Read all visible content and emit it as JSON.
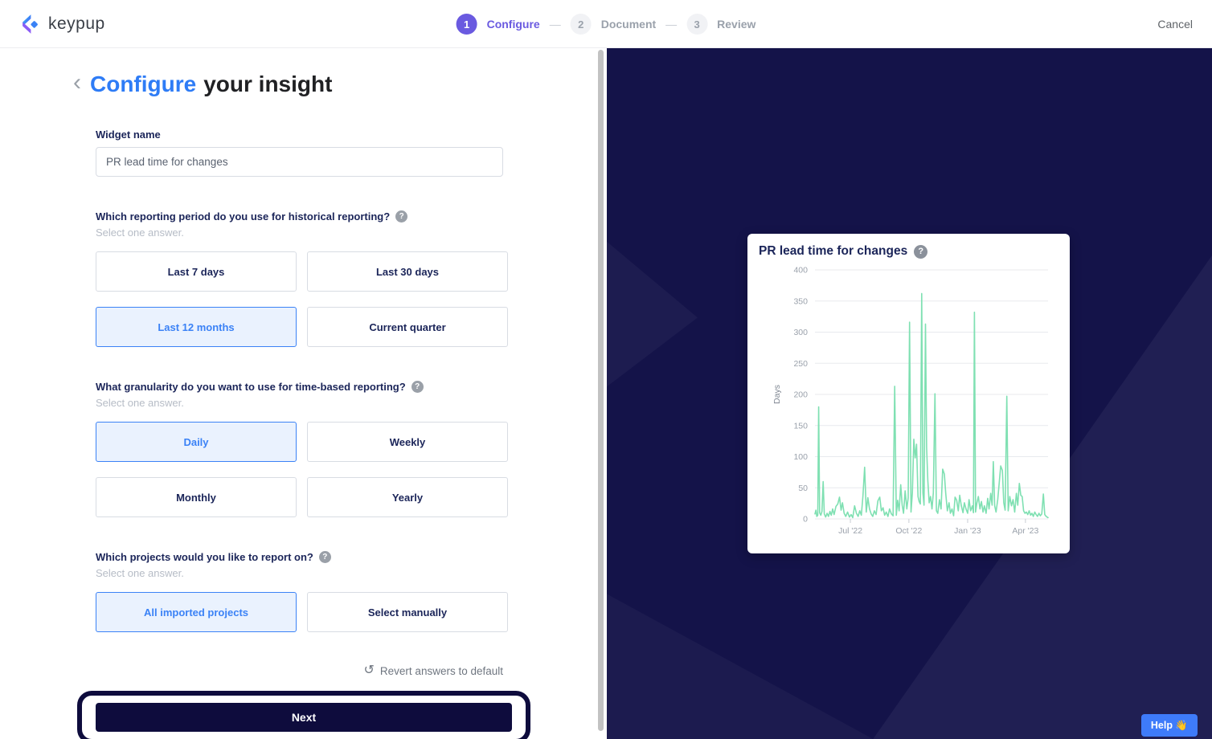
{
  "header": {
    "brand": "keypup",
    "cancel_label": "Cancel",
    "separator": "—",
    "steps": [
      {
        "number": "1",
        "label": "Configure",
        "active": true
      },
      {
        "number": "2",
        "label": "Document",
        "active": false
      },
      {
        "number": "3",
        "label": "Review",
        "active": false
      }
    ]
  },
  "panel": {
    "back_icon": "‹",
    "title_highlight": "Configure",
    "title_rest": "your insight",
    "widget_name": {
      "label": "Widget name",
      "value": "PR lead time for changes"
    },
    "questions": [
      {
        "text": "Which reporting period do you use for historical reporting?",
        "hint": "Select one answer.",
        "options": [
          {
            "label": "Last 7 days",
            "selected": false
          },
          {
            "label": "Last 30 days",
            "selected": false
          },
          {
            "label": "Last 12 months",
            "selected": true
          },
          {
            "label": "Current quarter",
            "selected": false
          }
        ]
      },
      {
        "text": "What granularity do you want to use for time-based reporting?",
        "hint": "Select one answer.",
        "options": [
          {
            "label": "Daily",
            "selected": true
          },
          {
            "label": "Weekly",
            "selected": false
          },
          {
            "label": "Monthly",
            "selected": false
          },
          {
            "label": "Yearly",
            "selected": false
          }
        ]
      },
      {
        "text": "Which projects would you like to report on?",
        "hint": "Select one answer.",
        "options": [
          {
            "label": "All imported projects",
            "selected": true
          },
          {
            "label": "Select manually",
            "selected": false
          }
        ]
      }
    ],
    "revert_label": "Revert answers to default",
    "revert_icon": "↺",
    "next_label": "Next"
  },
  "preview": {
    "help_label": "Help 👋"
  },
  "colors": {
    "accent_purple": "#6a5ae0",
    "accent_blue": "#2e7cf6",
    "dark_navy": "#141349",
    "button_navy": "#0e0c3d",
    "chart_green": "#7fe0b2"
  },
  "chart_data": {
    "type": "line",
    "title": "PR lead time for changes",
    "ylabel": "Days",
    "ylim": [
      0,
      400
    ],
    "yticks": [
      0,
      50,
      100,
      150,
      200,
      250,
      300,
      350,
      400
    ],
    "xticks": [
      {
        "label": "Jul '22",
        "x": 0.152
      },
      {
        "label": "Oct '22",
        "x": 0.403
      },
      {
        "label": "Jan '23",
        "x": 0.655
      },
      {
        "label": "Apr '23",
        "x": 0.903
      }
    ],
    "grid": true,
    "legend": false,
    "line_color": "#7fe0b2",
    "series": [
      {
        "name": "PR lead time for changes",
        "points": [
          [
            0.0,
            8
          ],
          [
            0.004,
            14
          ],
          [
            0.008,
            4
          ],
          [
            0.012,
            6
          ],
          [
            0.016,
            180
          ],
          [
            0.02,
            10
          ],
          [
            0.025,
            6
          ],
          [
            0.03,
            12
          ],
          [
            0.035,
            60
          ],
          [
            0.04,
            8
          ],
          [
            0.046,
            3
          ],
          [
            0.052,
            9
          ],
          [
            0.058,
            4
          ],
          [
            0.064,
            12
          ],
          [
            0.07,
            6
          ],
          [
            0.076,
            16
          ],
          [
            0.082,
            7
          ],
          [
            0.09,
            20
          ],
          [
            0.098,
            24
          ],
          [
            0.105,
            35
          ],
          [
            0.112,
            14
          ],
          [
            0.118,
            26
          ],
          [
            0.125,
            9
          ],
          [
            0.132,
            4
          ],
          [
            0.14,
            11
          ],
          [
            0.148,
            3
          ],
          [
            0.155,
            7
          ],
          [
            0.162,
            2
          ],
          [
            0.17,
            21
          ],
          [
            0.178,
            9
          ],
          [
            0.185,
            4
          ],
          [
            0.192,
            13
          ],
          [
            0.199,
            6
          ],
          [
            0.206,
            37
          ],
          [
            0.213,
            83
          ],
          [
            0.22,
            11
          ],
          [
            0.227,
            34
          ],
          [
            0.234,
            16
          ],
          [
            0.241,
            8
          ],
          [
            0.248,
            4
          ],
          [
            0.255,
            13
          ],
          [
            0.262,
            7
          ],
          [
            0.27,
            29
          ],
          [
            0.278,
            35
          ],
          [
            0.285,
            13
          ],
          [
            0.292,
            18
          ],
          [
            0.299,
            6
          ],
          [
            0.306,
            11
          ],
          [
            0.313,
            4
          ],
          [
            0.32,
            16
          ],
          [
            0.328,
            8
          ],
          [
            0.335,
            5
          ],
          [
            0.342,
            213
          ],
          [
            0.349,
            6
          ],
          [
            0.355,
            30
          ],
          [
            0.361,
            13
          ],
          [
            0.368,
            55
          ],
          [
            0.374,
            22
          ],
          [
            0.38,
            9
          ],
          [
            0.387,
            45
          ],
          [
            0.394,
            16
          ],
          [
            0.4,
            34
          ],
          [
            0.406,
            316
          ],
          [
            0.412,
            11
          ],
          [
            0.418,
            42
          ],
          [
            0.424,
            128
          ],
          [
            0.43,
            98
          ],
          [
            0.436,
            120
          ],
          [
            0.442,
            36
          ],
          [
            0.447,
            28
          ],
          [
            0.452,
            24
          ],
          [
            0.458,
            362
          ],
          [
            0.463,
            42
          ],
          [
            0.468,
            22
          ],
          [
            0.474,
            313
          ],
          [
            0.479,
            115
          ],
          [
            0.484,
            62
          ],
          [
            0.49,
            26
          ],
          [
            0.496,
            36
          ],
          [
            0.502,
            16
          ],
          [
            0.508,
            42
          ],
          [
            0.515,
            201
          ],
          [
            0.521,
            13
          ],
          [
            0.527,
            9
          ],
          [
            0.534,
            31
          ],
          [
            0.541,
            16
          ],
          [
            0.548,
            80
          ],
          [
            0.555,
            72
          ],
          [
            0.561,
            41
          ],
          [
            0.568,
            13
          ],
          [
            0.575,
            26
          ],
          [
            0.581,
            9
          ],
          [
            0.588,
            16
          ],
          [
            0.595,
            5
          ],
          [
            0.601,
            35
          ],
          [
            0.608,
            30
          ],
          [
            0.615,
            13
          ],
          [
            0.621,
            38
          ],
          [
            0.628,
            21
          ],
          [
            0.635,
            10
          ],
          [
            0.641,
            26
          ],
          [
            0.648,
            16
          ],
          [
            0.655,
            9
          ],
          [
            0.661,
            31
          ],
          [
            0.668,
            13
          ],
          [
            0.675,
            21
          ],
          [
            0.68,
            10
          ],
          [
            0.684,
            332
          ],
          [
            0.689,
            11
          ],
          [
            0.695,
            26
          ],
          [
            0.701,
            36
          ],
          [
            0.708,
            16
          ],
          [
            0.714,
            28
          ],
          [
            0.721,
            11
          ],
          [
            0.727,
            21
          ],
          [
            0.734,
            9
          ],
          [
            0.741,
            33
          ],
          [
            0.747,
            16
          ],
          [
            0.754,
            41
          ],
          [
            0.76,
            22
          ],
          [
            0.765,
            92
          ],
          [
            0.771,
            21
          ],
          [
            0.777,
            11
          ],
          [
            0.784,
            31
          ],
          [
            0.791,
            60
          ],
          [
            0.797,
            85
          ],
          [
            0.804,
            78
          ],
          [
            0.81,
            26
          ],
          [
            0.816,
            14
          ],
          [
            0.823,
            197
          ],
          [
            0.829,
            13
          ],
          [
            0.836,
            36
          ],
          [
            0.843,
            21
          ],
          [
            0.85,
            31
          ],
          [
            0.857,
            11
          ],
          [
            0.864,
            41
          ],
          [
            0.87,
            22
          ],
          [
            0.877,
            57
          ],
          [
            0.883,
            38
          ],
          [
            0.889,
            36
          ],
          [
            0.895,
            13
          ],
          [
            0.901,
            9
          ],
          [
            0.907,
            11
          ],
          [
            0.913,
            7
          ],
          [
            0.919,
            13
          ],
          [
            0.925,
            6
          ],
          [
            0.931,
            9
          ],
          [
            0.937,
            4
          ],
          [
            0.943,
            11
          ],
          [
            0.949,
            7
          ],
          [
            0.955,
            4
          ],
          [
            0.961,
            9
          ],
          [
            0.967,
            5
          ],
          [
            0.973,
            8
          ],
          [
            0.98,
            40
          ],
          [
            0.986,
            7
          ],
          [
            0.992,
            4
          ],
          [
            1.0,
            2
          ]
        ]
      }
    ]
  }
}
